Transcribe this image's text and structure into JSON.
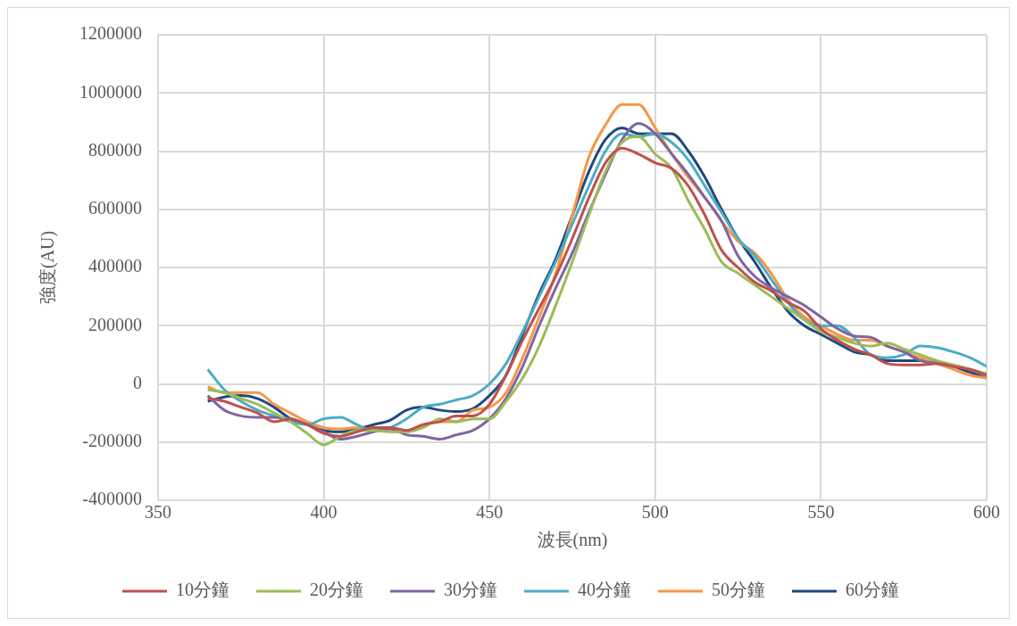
{
  "chart_data": {
    "type": "line",
    "xlabel": "波長(nm)",
    "ylabel": "強度(AU)",
    "x": [
      365,
      370,
      375,
      380,
      385,
      390,
      395,
      400,
      405,
      410,
      415,
      420,
      425,
      430,
      435,
      440,
      445,
      450,
      455,
      460,
      465,
      470,
      475,
      480,
      485,
      490,
      495,
      500,
      505,
      510,
      515,
      520,
      525,
      530,
      535,
      540,
      545,
      550,
      555,
      560,
      565,
      570,
      575,
      580,
      585,
      590,
      595,
      600
    ],
    "series": [
      {
        "name": "10分鐘",
        "color": "#c0504d",
        "values": [
          -50000,
          -60000,
          -80000,
          -100000,
          -130000,
          -120000,
          -140000,
          -170000,
          -180000,
          -165000,
          -150000,
          -150000,
          -160000,
          -140000,
          -130000,
          -110000,
          -110000,
          -70000,
          30000,
          150000,
          260000,
          370000,
          500000,
          640000,
          760000,
          810000,
          790000,
          760000,
          740000,
          680000,
          580000,
          460000,
          400000,
          350000,
          320000,
          280000,
          250000,
          190000,
          150000,
          120000,
          100000,
          70000,
          65000,
          65000,
          70000,
          60000,
          50000,
          30000
        ]
      },
      {
        "name": "20分鐘",
        "color": "#9bbb59",
        "values": [
          -20000,
          -30000,
          -50000,
          -70000,
          -100000,
          -130000,
          -170000,
          -210000,
          -180000,
          -160000,
          -160000,
          -165000,
          -165000,
          -150000,
          -120000,
          -130000,
          -120000,
          -120000,
          -60000,
          20000,
          130000,
          270000,
          420000,
          580000,
          730000,
          830000,
          850000,
          790000,
          740000,
          630000,
          530000,
          420000,
          380000,
          340000,
          300000,
          260000,
          220000,
          180000,
          160000,
          140000,
          130000,
          140000,
          120000,
          100000,
          80000,
          65000,
          50000,
          35000
        ]
      },
      {
        "name": "30分鐘",
        "color": "#8064a2",
        "values": [
          -40000,
          -90000,
          -110000,
          -115000,
          -115000,
          -120000,
          -140000,
          -165000,
          -190000,
          -180000,
          -165000,
          -155000,
          -175000,
          -180000,
          -190000,
          -175000,
          -160000,
          -120000,
          -50000,
          60000,
          200000,
          330000,
          450000,
          590000,
          720000,
          840000,
          895000,
          860000,
          790000,
          720000,
          640000,
          560000,
          440000,
          370000,
          330000,
          300000,
          270000,
          230000,
          190000,
          165000,
          160000,
          130000,
          110000,
          80000,
          70000,
          60000,
          50000,
          30000
        ]
      },
      {
        "name": "40分鐘",
        "color": "#4bacc6",
        "values": [
          50000,
          -20000,
          -60000,
          -90000,
          -110000,
          -130000,
          -140000,
          -120000,
          -115000,
          -140000,
          -160000,
          -150000,
          -120000,
          -80000,
          -70000,
          -55000,
          -40000,
          0,
          70000,
          180000,
          300000,
          420000,
          550000,
          680000,
          800000,
          860000,
          850000,
          860000,
          830000,
          770000,
          680000,
          590000,
          500000,
          440000,
          360000,
          280000,
          220000,
          200000,
          200000,
          160000,
          100000,
          90000,
          100000,
          130000,
          125000,
          110000,
          90000,
          60000
        ]
      },
      {
        "name": "50分鐘",
        "color": "#f79646",
        "values": [
          -10000,
          -30000,
          -30000,
          -30000,
          -70000,
          -100000,
          -130000,
          -150000,
          -155000,
          -150000,
          -160000,
          -155000,
          -160000,
          -140000,
          -130000,
          -130000,
          -90000,
          -80000,
          -30000,
          90000,
          230000,
          380000,
          580000,
          780000,
          890000,
          960000,
          960000,
          880000,
          790000,
          710000,
          640000,
          560000,
          490000,
          450000,
          380000,
          290000,
          230000,
          200000,
          170000,
          150000,
          150000,
          130000,
          110000,
          90000,
          70000,
          50000,
          30000,
          20000
        ]
      },
      {
        "name": "60分鐘",
        "color": "#1f497d",
        "values": [
          -60000,
          -45000,
          -40000,
          -50000,
          -80000,
          -120000,
          -140000,
          -160000,
          -165000,
          -155000,
          -140000,
          -125000,
          -90000,
          -80000,
          -90000,
          -95000,
          -85000,
          -40000,
          30000,
          170000,
          310000,
          430000,
          580000,
          730000,
          840000,
          880000,
          860000,
          860000,
          860000,
          800000,
          710000,
          600000,
          500000,
          420000,
          330000,
          250000,
          200000,
          170000,
          140000,
          110000,
          100000,
          80000,
          80000,
          80000,
          76000,
          60000,
          40000,
          20000
        ]
      }
    ],
    "xlim": [
      350,
      600
    ],
    "xticks": [
      350,
      400,
      450,
      500,
      550,
      600
    ],
    "ylim": [
      -400000,
      1200000
    ],
    "yticks": [
      -400000,
      -200000,
      0,
      200000,
      400000,
      600000,
      800000,
      1000000,
      1200000
    ],
    "grid": true,
    "legend": "bottom"
  }
}
